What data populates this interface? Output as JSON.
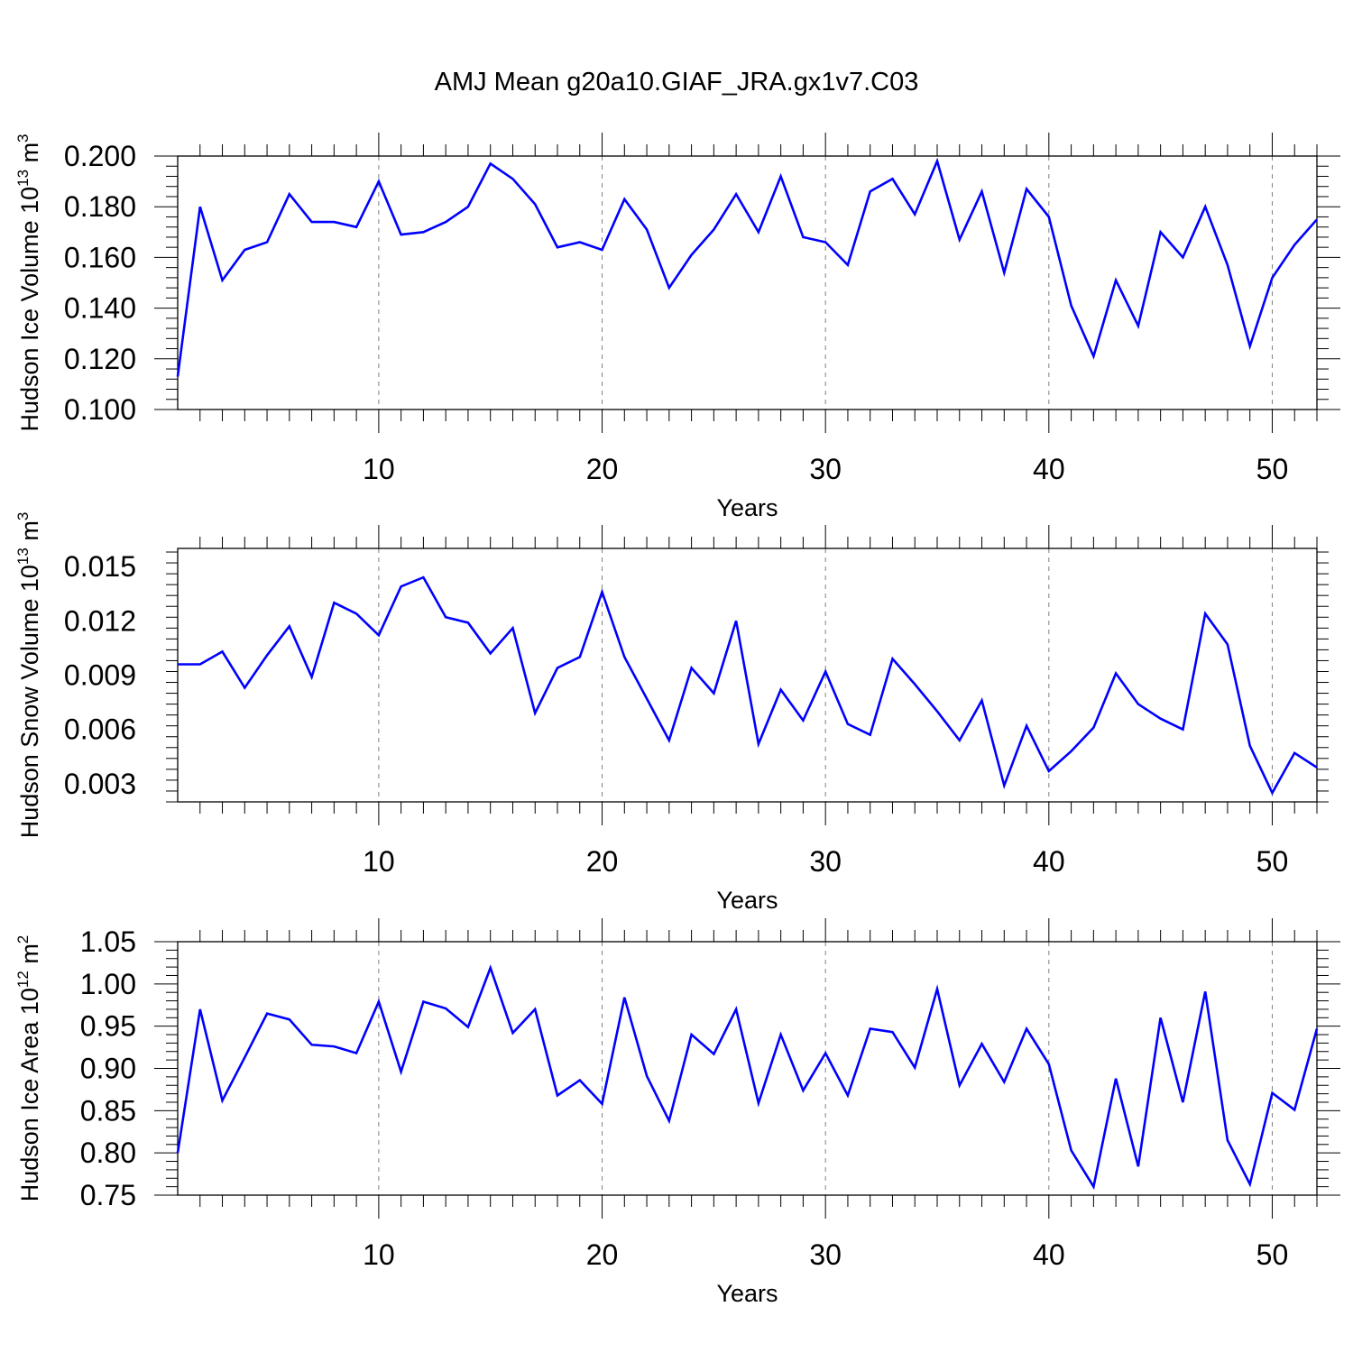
{
  "figure_title": "AMJ Mean g20a10.GIAF_JRA.gx1v7.C03",
  "chart_data": [
    {
      "type": "line",
      "title": "AMJ Mean g20a10.GIAF_JRA.gx1v7.C03",
      "xlabel": "Years",
      "ylabel": "Hudson Ice Volume 10 13 m 3",
      "ylabel_parts": {
        "base": "Hudson Ice Volume 10",
        "exp": "13",
        "unit": " m",
        "unit_exp": "3"
      },
      "xlim": [
        1,
        52
      ],
      "ylim": [
        0.1,
        0.2
      ],
      "xticks": [
        10,
        20,
        30,
        40,
        50
      ],
      "xtick_labels": [
        "10",
        "20",
        "30",
        "40",
        "50"
      ],
      "yticks": [
        0.1,
        0.12,
        0.14,
        0.16,
        0.18,
        0.2
      ],
      "ytick_labels": [
        "0.100",
        "0.120",
        "0.140",
        "0.160",
        "0.180",
        "0.200"
      ],
      "grid": "vertical dashed at major x ticks",
      "color": "#0000ff",
      "series": [
        {
          "name": "Hudson Ice Volume",
          "x": [
            1,
            2,
            3,
            4,
            5,
            6,
            7,
            8,
            9,
            10,
            11,
            12,
            13,
            14,
            15,
            16,
            17,
            18,
            19,
            20,
            21,
            22,
            23,
            24,
            25,
            26,
            27,
            28,
            29,
            30,
            31,
            32,
            33,
            34,
            35,
            36,
            37,
            38,
            39,
            40,
            41,
            42,
            43,
            44,
            45,
            46,
            47,
            48,
            49,
            50,
            51,
            52
          ],
          "values": [
            0.113,
            0.18,
            0.151,
            0.163,
            0.166,
            0.185,
            0.174,
            0.174,
            0.172,
            0.19,
            0.169,
            0.17,
            0.174,
            0.18,
            0.197,
            0.191,
            0.181,
            0.164,
            0.166,
            0.163,
            0.183,
            0.171,
            0.148,
            0.161,
            0.171,
            0.185,
            0.17,
            0.192,
            0.168,
            0.166,
            0.157,
            0.186,
            0.191,
            0.177,
            0.198,
            0.167,
            0.186,
            0.154,
            0.187,
            0.176,
            0.141,
            0.121,
            0.151,
            0.133,
            0.17,
            0.16,
            0.18,
            0.157,
            0.125,
            0.152,
            0.165,
            0.175
          ]
        }
      ]
    },
    {
      "type": "line",
      "xlabel": "Years",
      "ylabel": "Hudson Snow Volume 10 13 m 3",
      "ylabel_parts": {
        "base": "Hudson Snow Volume 10",
        "exp": "13",
        "unit": " m",
        "unit_exp": "3"
      },
      "xlim": [
        1,
        52
      ],
      "ylim": [
        0.002,
        0.016
      ],
      "xticks": [
        10,
        20,
        30,
        40,
        50
      ],
      "xtick_labels": [
        "10",
        "20",
        "30",
        "40",
        "50"
      ],
      "yticks": [
        0.003,
        0.006,
        0.009,
        0.012,
        0.015
      ],
      "ytick_labels": [
        "0.003",
        "0.006",
        "0.009",
        "0.012",
        "0.015"
      ],
      "grid": "vertical dashed at major x ticks",
      "color": "#0000ff",
      "series": [
        {
          "name": "Hudson Snow Volume",
          "x": [
            1,
            2,
            3,
            4,
            5,
            6,
            7,
            8,
            9,
            10,
            11,
            12,
            13,
            14,
            15,
            16,
            17,
            18,
            19,
            20,
            21,
            22,
            23,
            24,
            25,
            26,
            27,
            28,
            29,
            30,
            31,
            32,
            33,
            34,
            35,
            36,
            37,
            38,
            39,
            40,
            41,
            42,
            43,
            44,
            45,
            46,
            47,
            48,
            49,
            50,
            51,
            52
          ],
          "values": [
            0.0096,
            0.0096,
            0.0103,
            0.0083,
            0.0101,
            0.0117,
            0.0089,
            0.013,
            0.0124,
            0.0112,
            0.0139,
            0.0144,
            0.0122,
            0.0119,
            0.0102,
            0.0116,
            0.0069,
            0.0094,
            0.01,
            0.0136,
            0.01,
            0.0077,
            0.0054,
            0.0094,
            0.008,
            0.012,
            0.0052,
            0.0082,
            0.0065,
            0.0092,
            0.0063,
            0.0057,
            0.0099,
            0.0085,
            0.007,
            0.0054,
            0.0076,
            0.0029,
            0.0062,
            0.0037,
            0.0048,
            0.0061,
            0.0091,
            0.0074,
            0.0066,
            0.006,
            0.0124,
            0.0107,
            0.0051,
            0.0025,
            0.0047,
            0.0039
          ]
        }
      ]
    },
    {
      "type": "line",
      "xlabel": "Years",
      "ylabel": "Hudson Ice Area 10 12 m 2",
      "ylabel_parts": {
        "base": "Hudson Ice Area 10",
        "exp": "12",
        "unit": " m",
        "unit_exp": "2"
      },
      "xlim": [
        1,
        52
      ],
      "ylim": [
        0.75,
        1.05
      ],
      "xticks": [
        10,
        20,
        30,
        40,
        50
      ],
      "xtick_labels": [
        "10",
        "20",
        "30",
        "40",
        "50"
      ],
      "yticks": [
        0.75,
        0.8,
        0.85,
        0.9,
        0.95,
        1.0,
        1.05
      ],
      "ytick_labels": [
        "0.75",
        "0.80",
        "0.85",
        "0.90",
        "0.95",
        "1.00",
        "1.05"
      ],
      "grid": "vertical dashed at major x ticks",
      "color": "#0000ff",
      "series": [
        {
          "name": "Hudson Ice Area",
          "x": [
            1,
            2,
            3,
            4,
            5,
            6,
            7,
            8,
            9,
            10,
            11,
            12,
            13,
            14,
            15,
            16,
            17,
            18,
            19,
            20,
            21,
            22,
            23,
            24,
            25,
            26,
            27,
            28,
            29,
            30,
            31,
            32,
            33,
            34,
            35,
            36,
            37,
            38,
            39,
            40,
            41,
            42,
            43,
            44,
            45,
            46,
            47,
            48,
            49,
            50,
            51,
            52
          ],
          "values": [
            0.8,
            0.97,
            0.862,
            0.913,
            0.965,
            0.958,
            0.928,
            0.926,
            0.918,
            0.979,
            0.896,
            0.979,
            0.971,
            0.949,
            1.019,
            0.942,
            0.97,
            0.868,
            0.886,
            0.858,
            0.984,
            0.891,
            0.838,
            0.94,
            0.917,
            0.97,
            0.859,
            0.94,
            0.874,
            0.918,
            0.868,
            0.947,
            0.943,
            0.901,
            0.994,
            0.88,
            0.929,
            0.884,
            0.947,
            0.905,
            0.803,
            0.76,
            0.888,
            0.784,
            0.96,
            0.86,
            0.991,
            0.815,
            0.763,
            0.871,
            0.851,
            0.947
          ]
        }
      ]
    }
  ]
}
